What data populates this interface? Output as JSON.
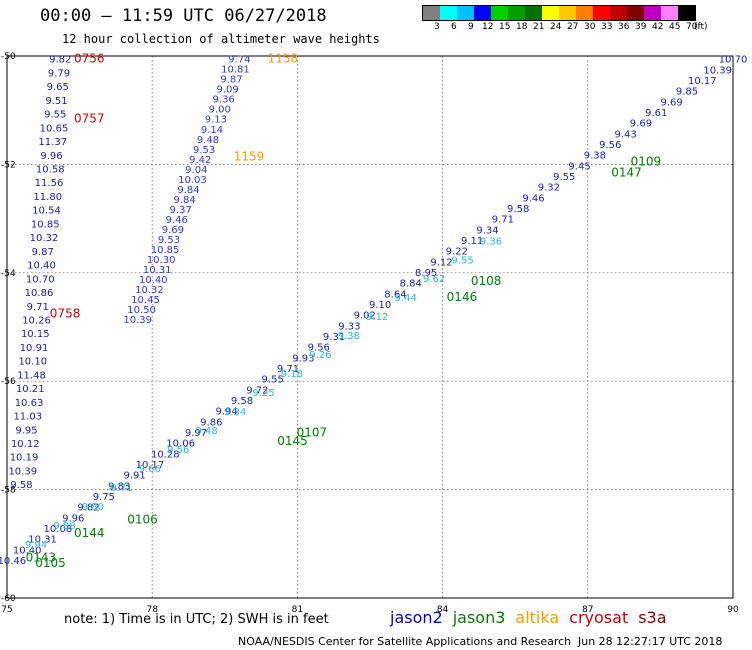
{
  "title": "00:00 – 11:59 UTC 06/27/2018",
  "subtitle": "12 hour collection of altimeter wave heights",
  "legend": {
    "unit": "(ft)",
    "colors": [
      "#808080",
      "#00ffff",
      "#00c0ff",
      "#0000ff",
      "#00d000",
      "#00a000",
      "#007000",
      "#ffff00",
      "#ffc800",
      "#ff8000",
      "#ff0000",
      "#c00000",
      "#800000",
      "#c000c0",
      "#ff80ff",
      "#000000"
    ],
    "labels": [
      "3",
      "6",
      "9",
      "12",
      "15",
      "18",
      "21",
      "24",
      "27",
      "30",
      "33",
      "36",
      "39",
      "42",
      "45",
      "70"
    ]
  },
  "footer": {
    "note": "note: 1) Time is in UTC; 2) SWH is in feet",
    "credit": "NOAA/NESDIS Center for Satellite Applications and Research",
    "timestamp": "Jun 28 12:27:17 UTC 2018",
    "satellites": [
      {
        "name": "jason2",
        "color": "#0000c8"
      },
      {
        "name": "jason3",
        "color": "#008000"
      },
      {
        "name": "altika",
        "color": "#ff9900"
      },
      {
        "name": "cryosat",
        "color": "#cc0000"
      },
      {
        "name": "s3a",
        "color": "#880000"
      }
    ]
  },
  "chart_data": {
    "type": "scatter",
    "xlim": [
      75,
      90
    ],
    "ylim": [
      -60,
      -50
    ],
    "xticks": [
      "75",
      "78",
      "81",
      "84",
      "87",
      "90"
    ],
    "yticks": [
      "-50",
      "-52",
      "-54",
      "-56",
      "-58",
      "-60"
    ],
    "grid": true,
    "tracks": [
      {
        "name": "cryosat",
        "values": [
          "9.82",
          "9.79",
          "9.65",
          "9.51",
          "9.55",
          "10.65",
          "11.37",
          "9.96",
          "10.58",
          "11.56",
          "11.80",
          "10.54",
          "10.85",
          "10.32",
          "9.87",
          "10.40",
          "10.70",
          "10.86",
          "9.71",
          "10.26",
          "10.15",
          "10.91",
          "10.10",
          "11.48",
          "10.21",
          "10.63",
          "11.03",
          "9.95",
          "10.12",
          "10.19",
          "10.39",
          "9.58"
        ],
        "lon": [
          76.1,
          75.3
        ],
        "lat": [
          -50.05,
          -57.9
        ],
        "time_labels": [
          {
            "text": "0756",
            "lon": 76.7,
            "lat": -50.05
          },
          {
            "text": "0757",
            "lon": 76.7,
            "lat": -51.15
          },
          {
            "text": "0758",
            "lon": 76.2,
            "lat": -54.75
          }
        ]
      },
      {
        "name": "altika",
        "values": [
          "9.74",
          "10.81",
          "9.87",
          "9.09",
          "9.36",
          "9.00",
          "9.13",
          "9.14",
          "9.48",
          "9.53",
          "9.42",
          "9.04",
          "10.03",
          "9.84",
          "9.84",
          "9.37",
          "9.46",
          "9.69",
          "9.53",
          "10.85",
          "10.30",
          "10.31",
          "10.40",
          "10.32",
          "10.45",
          "10.50",
          "10.39"
        ],
        "lon": [
          79.8,
          77.7
        ],
        "lat": [
          -50.05,
          -54.85
        ],
        "time_labels": [
          {
            "text": "1158",
            "lon": 80.7,
            "lat": -50.05
          },
          {
            "text": "1159",
            "lon": 80.0,
            "lat": -51.85
          }
        ]
      },
      {
        "name": "jason2",
        "values": [
          "10.70",
          "10.39",
          "10.17",
          "9.85",
          "9.69",
          "9.61",
          "9.69",
          "9.43",
          "9.56",
          "9.38",
          "9.45",
          "9.55",
          "9.32",
          "9.46",
          "9.58",
          "9.71",
          "9.34",
          "9.11",
          "9.22",
          "9.12",
          "8.95",
          "8.84",
          "8.64",
          "9.10",
          "9.02",
          "9.33",
          "9.31",
          "9.56",
          "9.93",
          "9.71",
          "9.55",
          "9.72",
          "9.58",
          "9.94",
          "9.86",
          "9.97",
          "10.06",
          "10.28",
          "10.17",
          "9.91",
          "9.83",
          "9.75",
          "9.82",
          "9.96",
          "10.08",
          "10.31",
          "10.40",
          "10.46"
        ],
        "lon": [
          90.0,
          75.1
        ],
        "lat": [
          -50.05,
          -59.3
        ],
        "time_labels": [
          {
            "text": "0109",
            "lon": 88.2,
            "lat": -51.95
          },
          {
            "text": "0108",
            "lon": 84.9,
            "lat": -54.15
          },
          {
            "text": "0107",
            "lon": 81.3,
            "lat": -56.95
          },
          {
            "text": "0106",
            "lon": 77.8,
            "lat": -58.55
          },
          {
            "text": "0105",
            "lon": 75.9,
            "lat": -59.35
          }
        ]
      },
      {
        "name": "jason3",
        "values": [
          "9.36",
          "9.55",
          "9.62",
          "9.44",
          "9.12",
          "9.38",
          "9.26",
          "9.18",
          "9.25",
          "9.34",
          "9.48",
          "9.56",
          "9.66",
          "9.71",
          "9.80",
          "9.88",
          "9.94"
        ],
        "lon": [
          85.0,
          75.6
        ],
        "lat": [
          -53.4,
          -59.0
        ],
        "time_labels": [
          {
            "text": "0147",
            "lon": 87.8,
            "lat": -52.15
          },
          {
            "text": "0146",
            "lon": 84.4,
            "lat": -54.45
          },
          {
            "text": "0145",
            "lon": 80.9,
            "lat": -57.1
          },
          {
            "text": "0144",
            "lon": 76.7,
            "lat": -58.8
          },
          {
            "text": "0143",
            "lon": 75.7,
            "lat": -59.25
          }
        ]
      }
    ]
  }
}
